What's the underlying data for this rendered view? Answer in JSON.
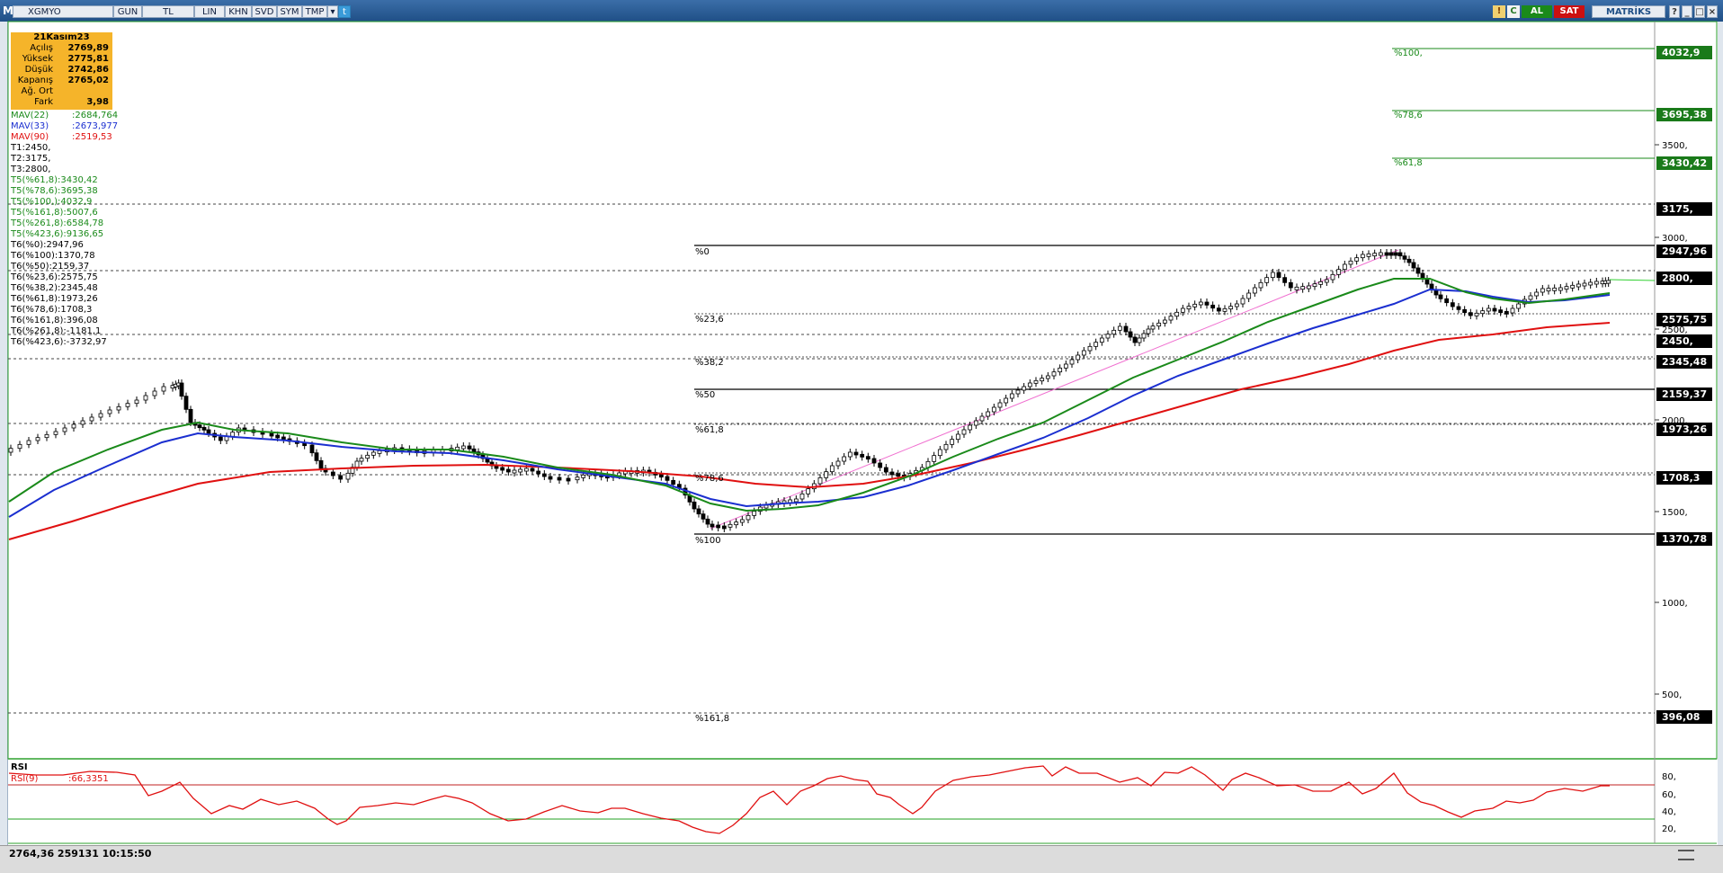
{
  "toolbar": {
    "logo": "M",
    "symbol": "XGMYO",
    "buttons": [
      "GUN",
      "TL",
      "LIN",
      "KHN",
      "SVD",
      "SYM",
      "TMP"
    ],
    "al_label": "AL",
    "sat_label": "SAT",
    "brand": "MATRİKS"
  },
  "infobox": {
    "date": "21Kasım23",
    "rows": [
      {
        "label": "Açılış",
        "value": "2769,89"
      },
      {
        "label": "Yüksek",
        "value": "2775,81"
      },
      {
        "label": "Düşük",
        "value": "2742,86"
      },
      {
        "label": "Kapanış",
        "value": "2765,02"
      },
      {
        "label": "Ağ. Ort",
        "value": ""
      },
      {
        "label": "Fark",
        "value": "3,98"
      }
    ]
  },
  "mav": [
    {
      "label": "MAV(22)",
      "value": ":2684,764",
      "color": "#1a8a1a"
    },
    {
      "label": "MAV(33)",
      "value": ":2673,977",
      "color": "#1b2fd0"
    },
    {
      "label": "MAV(90)",
      "value": ":2519,53",
      "color": "#e01010"
    }
  ],
  "levels_text": [
    {
      "text": "T1:2450,",
      "color": "#000000"
    },
    {
      "text": "T2:3175,",
      "color": "#000000"
    },
    {
      "text": "T3:2800,",
      "color": "#000000"
    },
    {
      "text": "T5(%61,8):3430,42",
      "color": "#1a8a1a"
    },
    {
      "text": "T5(%78,6):3695,38",
      "color": "#1a8a1a"
    },
    {
      "text": "T5(%100,):4032,9",
      "color": "#1a8a1a"
    },
    {
      "text": "T5(%161,8):5007,6",
      "color": "#1a8a1a"
    },
    {
      "text": "T5(%261,8):6584,78",
      "color": "#1a8a1a"
    },
    {
      "text": "T5(%423,6):9136,65",
      "color": "#1a8a1a"
    },
    {
      "text": "T6(%0):2947,96",
      "color": "#000000"
    },
    {
      "text": "T6(%100):1370,78",
      "color": "#000000"
    },
    {
      "text": "T6(%50):2159,37",
      "color": "#000000"
    },
    {
      "text": "T6(%23,6):2575,75",
      "color": "#000000"
    },
    {
      "text": "T6(%38,2):2345,48",
      "color": "#000000"
    },
    {
      "text": "T6(%61,8):1973,26",
      "color": "#000000"
    },
    {
      "text": "T6(%78,6):1708,3",
      "color": "#000000"
    },
    {
      "text": "T6(%161,8):396,08",
      "color": "#000000"
    },
    {
      "text": "T6(%261,8):-1181,1",
      "color": "#000000"
    },
    {
      "text": "T6(%423,6):-3732,97",
      "color": "#000000"
    }
  ],
  "price_axis_ticks": [
    "3500,",
    "3000,",
    "2500,",
    "2000,",
    "1500,",
    "1000,",
    "500,"
  ],
  "price_tags": [
    {
      "text": "4032,9",
      "kind": "green"
    },
    {
      "text": "3695,38",
      "kind": "green"
    },
    {
      "text": "3430,42",
      "kind": "green"
    },
    {
      "text": "3175,",
      "kind": "black"
    },
    {
      "text": "2947,96",
      "kind": "black"
    },
    {
      "text": "2800,",
      "kind": "black"
    },
    {
      "text": "2575,75",
      "kind": "black"
    },
    {
      "text": "2450,",
      "kind": "black"
    },
    {
      "text": "2345,48",
      "kind": "black"
    },
    {
      "text": "2159,37",
      "kind": "black"
    },
    {
      "text": "1973,26",
      "kind": "black"
    },
    {
      "text": "1708,3",
      "kind": "black"
    },
    {
      "text": "1370,78",
      "kind": "black"
    },
    {
      "text": "396,08",
      "kind": "black"
    }
  ],
  "fib_labels_upper": [
    "%100,",
    "%78,6",
    "%61,8"
  ],
  "fib_labels_lower": [
    "%0",
    "%23,6",
    "%38,2",
    "%50",
    "%61,8",
    "%78,6",
    "%100",
    "%161,8"
  ],
  "rsi": {
    "title": "RSI",
    "label": "RSI(9)",
    "value": ":66,3351",
    "ticks": [
      "80,",
      "60,",
      "40,",
      "20,"
    ]
  },
  "status": {
    "text": "2764,36    259131    10:15:50"
  }
}
